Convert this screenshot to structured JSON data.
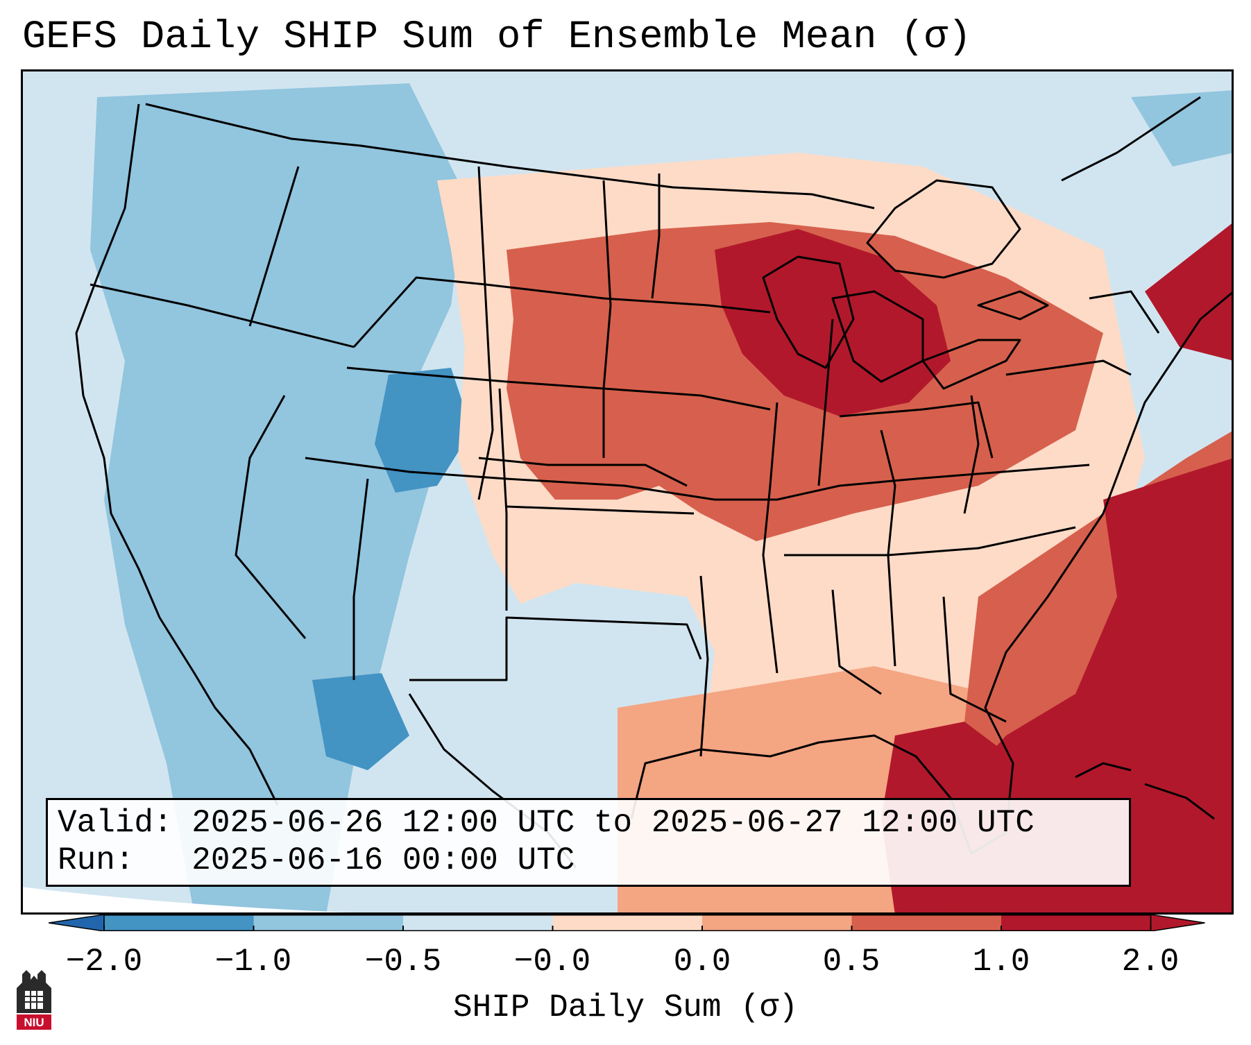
{
  "title": "GEFS Daily SHIP Sum of Ensemble Mean (σ)",
  "info": {
    "valid": "Valid: 2025-06-26 12:00 UTC to 2025-06-27 12:00 UTC",
    "run": "Run:   2025-06-16 00:00 UTC"
  },
  "colorbar": {
    "label": "SHIP Daily Sum (σ)",
    "ticks": [
      "−2.0",
      "−1.0",
      "−0.5",
      "−0.0",
      "0.0",
      "0.5",
      "1.0",
      "2.0"
    ],
    "colors": [
      "#4393c3",
      "#92c5de",
      "#d1e5f0",
      "#fddbc7",
      "#f4a582",
      "#d6604d",
      "#b2182b"
    ],
    "under_color": "#2166ac",
    "over_color": "#b2182b"
  },
  "logo": {
    "text": "NIU"
  }
}
